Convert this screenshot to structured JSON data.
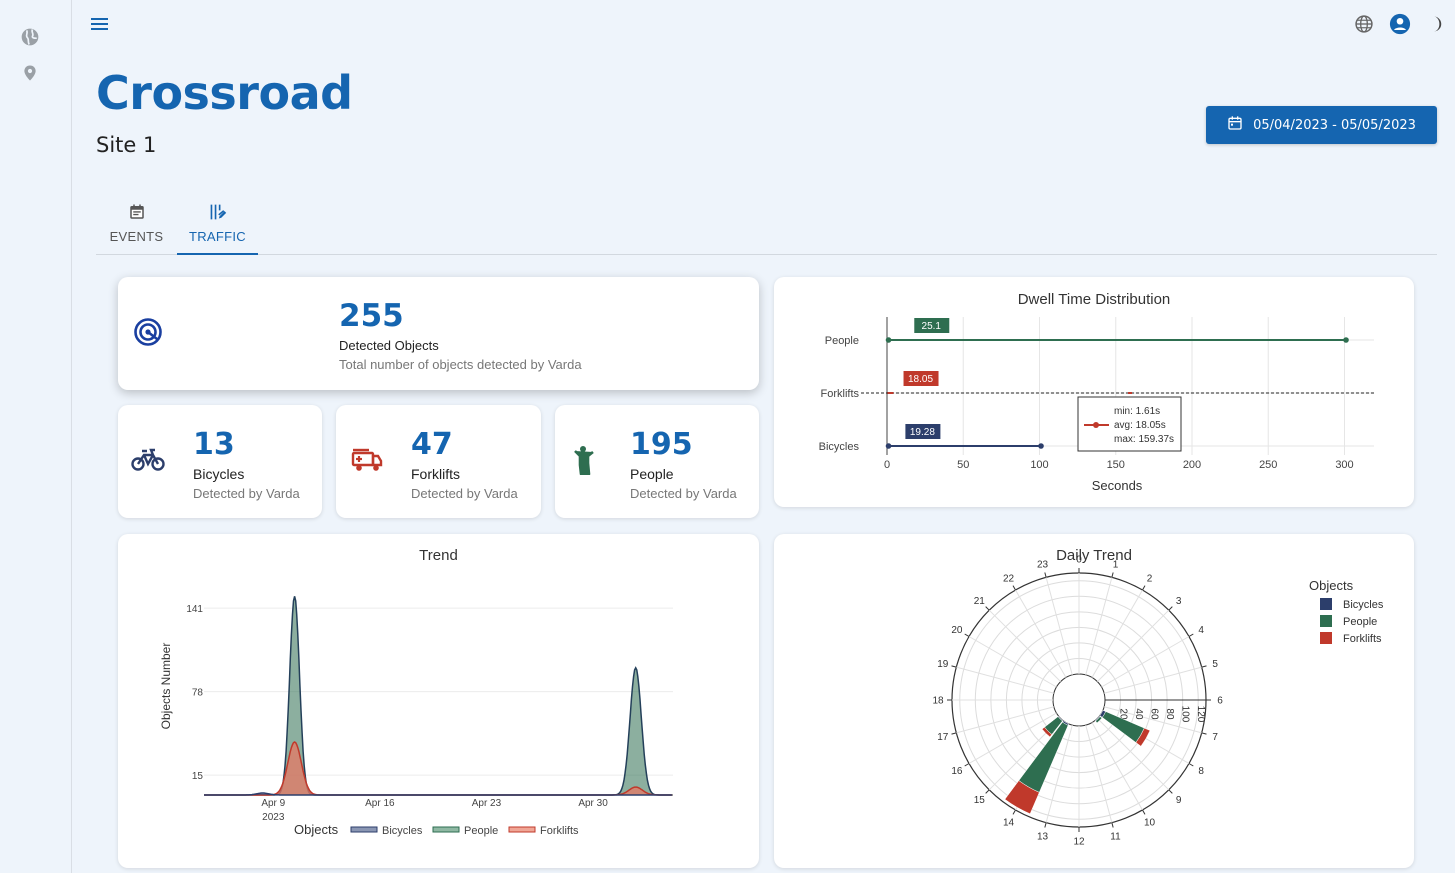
{
  "header": {
    "title": "Crossroad",
    "subtitle": "Site 1",
    "date_range": "05/04/2023 - 05/05/2023"
  },
  "rail": {
    "items": [
      {
        "icon": "globe-icon"
      },
      {
        "icon": "location-pin-icon"
      }
    ]
  },
  "topbar": {
    "icons": [
      "menu-icon",
      "language-icon",
      "account-icon",
      "dark-mode-icon"
    ]
  },
  "tabs": [
    {
      "label": "EVENTS",
      "icon": "calendar-icon",
      "active": false
    },
    {
      "label": "TRAFFIC",
      "icon": "traffic-icon",
      "active": true
    }
  ],
  "summary": {
    "total": {
      "value": "255",
      "label": "Detected Objects",
      "sub": "Total number of objects detected by Varda"
    },
    "bicycles": {
      "value": "13",
      "label": "Bicycles",
      "sub": "Detected by Varda"
    },
    "forklifts": {
      "value": "47",
      "label": "Forklifts",
      "sub": "Detected by Varda"
    },
    "people": {
      "value": "195",
      "label": "People",
      "sub": "Detected by Varda"
    }
  },
  "colors": {
    "primary": "#1565b0",
    "bicycles": "#2c3e6b",
    "people": "#2e6e50",
    "forklifts": "#c0392b"
  },
  "chart_data": [
    {
      "type": "box",
      "title": "Dwell Time Distribution",
      "xlabel": "Seconds",
      "xlim": [
        0,
        320
      ],
      "xticks": [
        0,
        50,
        100,
        150,
        200,
        250,
        300
      ],
      "categories": [
        "People",
        "Forklifts",
        "Bicycles"
      ],
      "series": [
        {
          "name": "People",
          "min": 1,
          "max": 301,
          "median_label": "25.1",
          "median": 25.1
        },
        {
          "name": "Forklifts",
          "min": 1.61,
          "max": 159.37,
          "avg": 18.05,
          "median_label": "18.05",
          "median": 18.05
        },
        {
          "name": "Bicycles",
          "min": 1,
          "max": 101,
          "median_label": "19.28",
          "median": 19.28
        }
      ],
      "tooltip": {
        "min": "min: 1.61s",
        "avg": "avg: 18.05s",
        "max": "max: 159.37s"
      }
    },
    {
      "type": "area",
      "title": "Trend",
      "ylabel": "Objects Number",
      "yticks": [
        15,
        78,
        141
      ],
      "ylim": [
        0,
        160
      ],
      "xtick_labels": [
        "Apr 9\n2023",
        "Apr 16",
        "Apr 23",
        "Apr 30"
      ],
      "legend_title": "Objects",
      "legend": [
        "Bicycles",
        "People",
        "Forklifts"
      ],
      "x": [
        0,
        0.5,
        1,
        1.5,
        2,
        2.5,
        3,
        3.5,
        4,
        4.5,
        5,
        5.5,
        6,
        6.5,
        7,
        7.5,
        8,
        8.5,
        9,
        9.5,
        10,
        10.5,
        11,
        11.5,
        12,
        12.5,
        13,
        13.5,
        14,
        14.5,
        15,
        15.5,
        16,
        16.5,
        17,
        17.5,
        18,
        18.5,
        19,
        19.5,
        20,
        20.5,
        21,
        21.5,
        22,
        22.5,
        23,
        23.5,
        24,
        24.5,
        25,
        25.5,
        26,
        26.5,
        27,
        27.5,
        28,
        28.5,
        29,
        29.5,
        30,
        30.5,
        31,
        31.5,
        32,
        32.5,
        33,
        33.5,
        34,
        34.5,
        35,
        35.5,
        36,
        36.5,
        37,
        37.5,
        38,
        38.5,
        39,
        39.5,
        40,
        40.5,
        41,
        41.5,
        42,
        42.5,
        43,
        43.5,
        44
      ],
      "series": [
        {
          "name": "Forklifts",
          "peaks": [
            {
              "at": 8.5,
              "height": 40,
              "width": 0.9
            },
            {
              "at": 40.5,
              "height": 6,
              "width": 0.9
            }
          ]
        },
        {
          "name": "People",
          "peaks": [
            {
              "at": 8.5,
              "height": 150,
              "width": 0.65
            },
            {
              "at": 40.5,
              "height": 96,
              "width": 0.75
            }
          ]
        },
        {
          "name": "Bicycles",
          "peaks": [
            {
              "at": 5.5,
              "height": 1.5,
              "width": 0.8
            }
          ]
        }
      ]
    },
    {
      "type": "polar-bar",
      "title": "Daily Trend",
      "legend_title": "Objects",
      "legend": [
        "Bicycles",
        "People",
        "Forklifts"
      ],
      "hours": [
        "0",
        "1",
        "2",
        "3",
        "4",
        "5",
        "6",
        "7",
        "8",
        "9",
        "10",
        "11",
        "12",
        "13",
        "14",
        "15",
        "16",
        "17",
        "18",
        "19",
        "20",
        "21",
        "22",
        "23"
      ],
      "radial_ticks": [
        "20",
        "40",
        "60",
        "80",
        "100",
        "120"
      ],
      "rmax": 130,
      "bars": [
        {
          "hour": 14,
          "Bicycles": 2,
          "People": 94,
          "Forklifts": 30
        },
        {
          "hour": 15,
          "Bicycles": 1,
          "People": 22,
          "Forklifts": 4
        },
        {
          "hour": 8,
          "Bicycles": 4,
          "People": 54,
          "Forklifts": 8
        },
        {
          "hour": 9,
          "Bicycles": 1,
          "People": 3,
          "Forklifts": 0
        }
      ]
    }
  ]
}
